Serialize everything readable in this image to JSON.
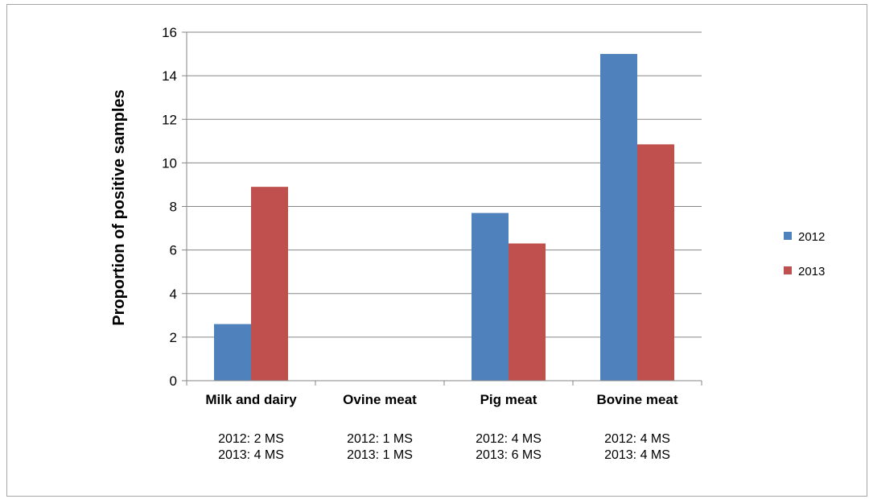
{
  "chart_data": {
    "type": "bar",
    "title": "",
    "xlabel": "",
    "ylabel": "Proportion of positive samples",
    "ylim": [
      0,
      16
    ],
    "yticks": [
      0,
      2,
      4,
      6,
      8,
      10,
      12,
      14,
      16
    ],
    "grid": true,
    "legend": "right",
    "categories": [
      "Milk and dairy",
      "Ovine meat",
      "Pig meat",
      "Bovine meat"
    ],
    "category_notes": [
      [
        "2012: 2 MS",
        "2013: 4 MS"
      ],
      [
        "2012: 1 MS",
        "2013: 1 MS"
      ],
      [
        "2012: 4 MS",
        "2013: 6 MS"
      ],
      [
        "2012: 4 MS",
        "2013: 4 MS"
      ]
    ],
    "series": [
      {
        "name": "2012",
        "color": "#4f81bd",
        "values": [
          2.6,
          0,
          7.7,
          15.0
        ]
      },
      {
        "name": "2013",
        "color": "#c0504d",
        "values": [
          8.9,
          0,
          6.3,
          10.85
        ]
      }
    ]
  }
}
